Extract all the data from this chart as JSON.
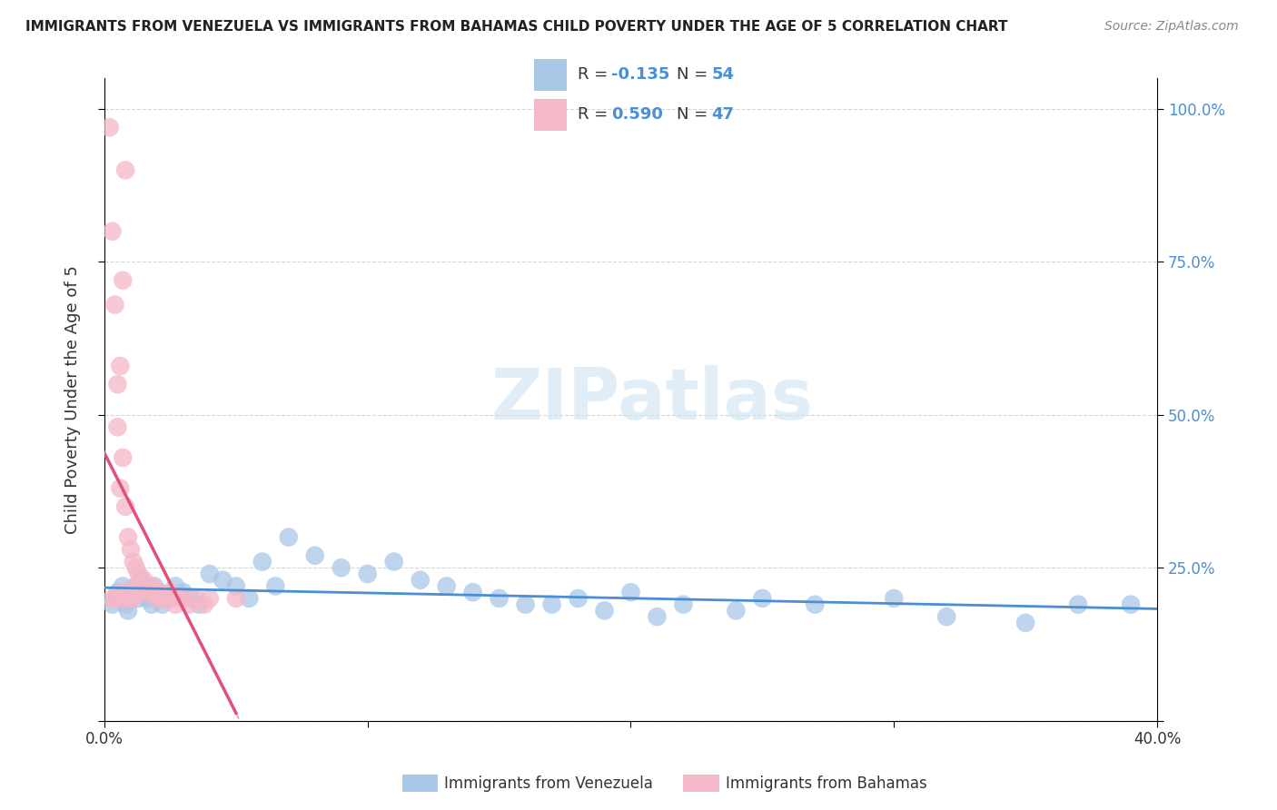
{
  "title": "IMMIGRANTS FROM VENEZUELA VS IMMIGRANTS FROM BAHAMAS CHILD POVERTY UNDER THE AGE OF 5 CORRELATION CHART",
  "source": "Source: ZipAtlas.com",
  "ylabel": "Child Poverty Under the Age of 5",
  "xlim": [
    0.0,
    0.4
  ],
  "ylim": [
    0.0,
    1.05
  ],
  "background_color": "#ffffff",
  "grid_color": "#cccccc",
  "watermark_text": "ZIPatlas",
  "venezuela_R": -0.135,
  "venezuela_N": 54,
  "bahamas_R": 0.59,
  "bahamas_N": 47,
  "venezuela_color": "#a8c8e8",
  "bahamas_color": "#f5b8c8",
  "trend_venezuela_color": "#4a8fd4",
  "trend_bahamas_color": "#e0507a",
  "venezuela_x": [
    0.003,
    0.005,
    0.006,
    0.007,
    0.008,
    0.009,
    0.01,
    0.011,
    0.012,
    0.013,
    0.014,
    0.015,
    0.016,
    0.017,
    0.018,
    0.019,
    0.02,
    0.021,
    0.022,
    0.025,
    0.027,
    0.03,
    0.033,
    0.036,
    0.04,
    0.045,
    0.05,
    0.055,
    0.06,
    0.065,
    0.07,
    0.08,
    0.09,
    0.1,
    0.11,
    0.12,
    0.13,
    0.14,
    0.15,
    0.16,
    0.17,
    0.18,
    0.19,
    0.2,
    0.21,
    0.22,
    0.24,
    0.25,
    0.27,
    0.3,
    0.32,
    0.35,
    0.37,
    0.39
  ],
  "venezuela_y": [
    0.19,
    0.21,
    0.2,
    0.22,
    0.19,
    0.18,
    0.2,
    0.21,
    0.22,
    0.2,
    0.23,
    0.22,
    0.2,
    0.21,
    0.19,
    0.22,
    0.2,
    0.21,
    0.19,
    0.2,
    0.22,
    0.21,
    0.2,
    0.19,
    0.24,
    0.23,
    0.22,
    0.2,
    0.26,
    0.22,
    0.3,
    0.27,
    0.25,
    0.24,
    0.26,
    0.23,
    0.22,
    0.21,
    0.2,
    0.19,
    0.19,
    0.2,
    0.18,
    0.21,
    0.17,
    0.19,
    0.18,
    0.2,
    0.19,
    0.2,
    0.17,
    0.16,
    0.19,
    0.19
  ],
  "bahamas_x": [
    0.002,
    0.003,
    0.004,
    0.005,
    0.005,
    0.006,
    0.006,
    0.007,
    0.007,
    0.008,
    0.008,
    0.009,
    0.009,
    0.01,
    0.01,
    0.011,
    0.011,
    0.012,
    0.012,
    0.013,
    0.013,
    0.014,
    0.015,
    0.015,
    0.016,
    0.017,
    0.018,
    0.019,
    0.02,
    0.021,
    0.022,
    0.023,
    0.025,
    0.027,
    0.028,
    0.03,
    0.032,
    0.035,
    0.038,
    0.04,
    0.003,
    0.004,
    0.005,
    0.006,
    0.007,
    0.008,
    0.05
  ],
  "bahamas_y": [
    0.97,
    0.2,
    0.2,
    0.55,
    0.2,
    0.38,
    0.21,
    0.43,
    0.2,
    0.35,
    0.21,
    0.3,
    0.2,
    0.28,
    0.21,
    0.26,
    0.2,
    0.25,
    0.22,
    0.24,
    0.21,
    0.22,
    0.23,
    0.21,
    0.22,
    0.21,
    0.22,
    0.21,
    0.2,
    0.21,
    0.2,
    0.2,
    0.21,
    0.19,
    0.2,
    0.2,
    0.19,
    0.2,
    0.19,
    0.2,
    0.8,
    0.68,
    0.48,
    0.58,
    0.72,
    0.9,
    0.2
  ]
}
